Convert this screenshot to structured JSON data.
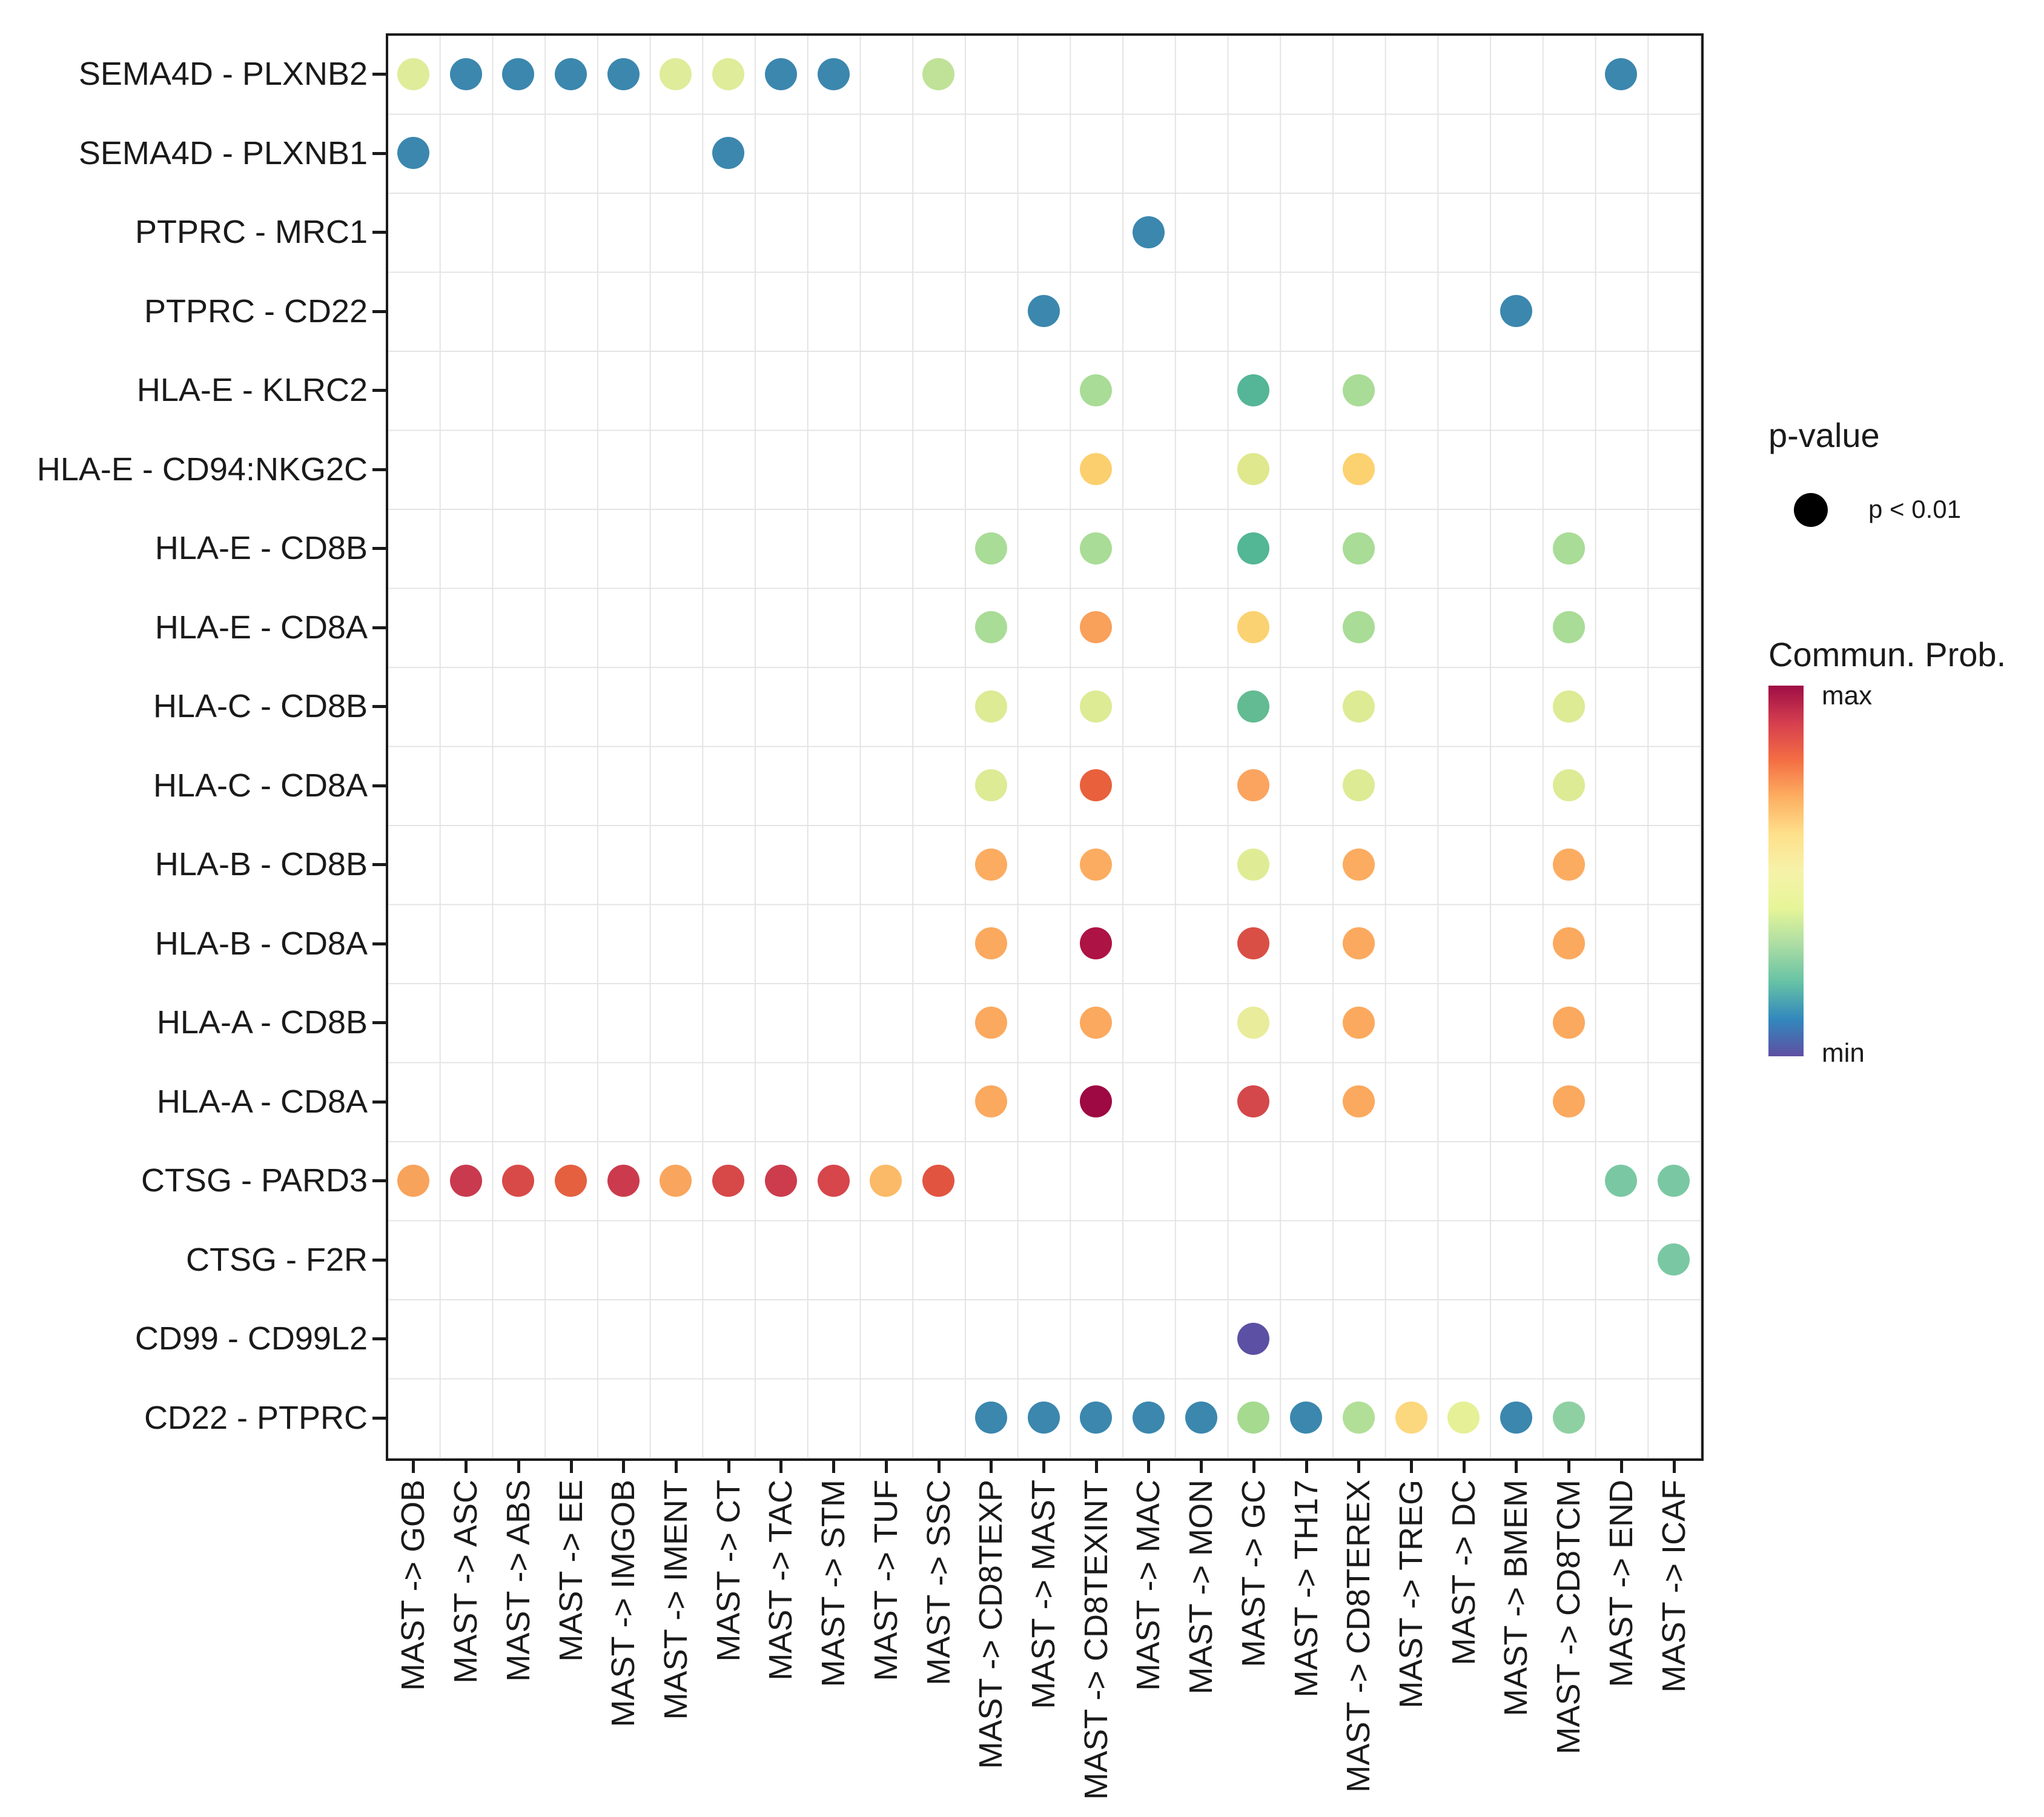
{
  "legend": {
    "p_value_title": "p-value",
    "p_value_item": "p < 0.01",
    "colorbar_title": "Commun. Prob.",
    "colorbar_max_label": "max",
    "colorbar_min_label": "min"
  },
  "chart_data": {
    "type": "scatter",
    "subtype": "dot-matrix (ligand-receptor communication bubble plot)",
    "title": "",
    "xlabel": "",
    "ylabel": "",
    "grid": "on",
    "legend_position": "right",
    "x_categories": [
      "MAST -> GOB",
      "MAST -> ASC",
      "MAST -> ABS",
      "MAST -> EE",
      "MAST -> IMGOB",
      "MAST -> IMENT",
      "MAST -> CT",
      "MAST -> TAC",
      "MAST -> STM",
      "MAST -> TUF",
      "MAST -> SSC",
      "MAST -> CD8TEXP",
      "MAST -> MAST",
      "MAST -> CD8TEXINT",
      "MAST -> MAC",
      "MAST -> MON",
      "MAST -> GC",
      "MAST -> TH17",
      "MAST -> CD8TEREX",
      "MAST -> TREG",
      "MAST -> DC",
      "MAST -> BMEM",
      "MAST -> CD8TCM",
      "MAST -> END",
      "MAST -> ICAF"
    ],
    "y_categories": [
      "SEMA4D - PLXNB2",
      "SEMA4D - PLXNB1",
      "PTPRC - MRC1",
      "PTPRC - CD22",
      "HLA-E - KLRC2",
      "HLA-E - CD94:NKG2C",
      "HLA-E - CD8B",
      "HLA-E - CD8A",
      "HLA-C - CD8B",
      "HLA-C - CD8A",
      "HLA-B - CD8B",
      "HLA-B - CD8A",
      "HLA-A - CD8B",
      "HLA-A - CD8A",
      "CTSG - PARD3",
      "CTSG - F2R",
      "CD99 - CD99L2",
      "CD22 - PTPRC"
    ],
    "p_value_encoding": "all shown dots: p < 0.01",
    "color_encoding": "Commun. Prob., min (purple/blue) to max (dark red), Spectral reversed",
    "colorbar_stops": [
      "#9E0E45",
      "#D53E4F",
      "#F46D43",
      "#FDAE61",
      "#FEE08B",
      "#F6F2A9",
      "#E6F598",
      "#ABDDA4",
      "#66C2A5",
      "#3288BD",
      "#5E4FA2"
    ],
    "points": [
      [
        0,
        0,
        "#DFEC9A",
        0.47
      ],
      [
        0,
        1,
        "#3B87AE",
        0.12
      ],
      [
        0,
        2,
        "#3B87AE",
        0.12
      ],
      [
        0,
        3,
        "#3B87AE",
        0.12
      ],
      [
        0,
        4,
        "#3B87AE",
        0.12
      ],
      [
        0,
        5,
        "#DFEC9A",
        0.47
      ],
      [
        0,
        6,
        "#DFEC9A",
        0.47
      ],
      [
        0,
        7,
        "#3B87AE",
        0.12
      ],
      [
        0,
        8,
        "#3B87AE",
        0.12
      ],
      [
        0,
        10,
        "#BFE298",
        0.42
      ],
      [
        0,
        23,
        "#3B87AE",
        0.12
      ],
      [
        1,
        0,
        "#3B87AE",
        0.12
      ],
      [
        1,
        6,
        "#3B87AE",
        0.12
      ],
      [
        2,
        14,
        "#3B87AE",
        0.12
      ],
      [
        3,
        12,
        "#3B87AE",
        0.12
      ],
      [
        3,
        21,
        "#3B87AE",
        0.12
      ],
      [
        4,
        13,
        "#A9DC96",
        0.38
      ],
      [
        4,
        16,
        "#55B597",
        0.27
      ],
      [
        4,
        18,
        "#A9DC96",
        0.38
      ],
      [
        5,
        13,
        "#FCCF6E",
        0.58
      ],
      [
        5,
        16,
        "#E0E88D",
        0.47
      ],
      [
        5,
        18,
        "#FCD170",
        0.58
      ],
      [
        6,
        11,
        "#A9DC96",
        0.38
      ],
      [
        6,
        13,
        "#A9DC96",
        0.38
      ],
      [
        6,
        16,
        "#53B695",
        0.27
      ],
      [
        6,
        18,
        "#A9DC96",
        0.38
      ],
      [
        6,
        22,
        "#A9DC96",
        0.38
      ],
      [
        7,
        11,
        "#A9DC96",
        0.38
      ],
      [
        7,
        13,
        "#F9A05A",
        0.68
      ],
      [
        7,
        16,
        "#FBD271",
        0.58
      ],
      [
        7,
        18,
        "#A9DC96",
        0.38
      ],
      [
        7,
        22,
        "#A9DC96",
        0.38
      ],
      [
        8,
        11,
        "#DCEB94",
        0.47
      ],
      [
        8,
        13,
        "#DCEB94",
        0.47
      ],
      [
        8,
        16,
        "#62BB92",
        0.28
      ],
      [
        8,
        18,
        "#DCEB94",
        0.47
      ],
      [
        8,
        22,
        "#DCEB94",
        0.47
      ],
      [
        9,
        11,
        "#DCEB94",
        0.47
      ],
      [
        9,
        13,
        "#E8603C",
        0.78
      ],
      [
        9,
        16,
        "#FAA45F",
        0.68
      ],
      [
        9,
        18,
        "#DDEB95",
        0.47
      ],
      [
        9,
        22,
        "#DDEB95",
        0.47
      ],
      [
        10,
        11,
        "#FBAC60",
        0.68
      ],
      [
        10,
        13,
        "#FBAC60",
        0.68
      ],
      [
        10,
        16,
        "#E0EC95",
        0.47
      ],
      [
        10,
        18,
        "#FBAC60",
        0.68
      ],
      [
        10,
        22,
        "#FBAC60",
        0.68
      ],
      [
        11,
        11,
        "#FBA95E",
        0.68
      ],
      [
        11,
        13,
        "#AD1345",
        0.96
      ],
      [
        11,
        16,
        "#D94F45",
        0.85
      ],
      [
        11,
        18,
        "#FBA95E",
        0.68
      ],
      [
        11,
        22,
        "#FBA95E",
        0.68
      ],
      [
        12,
        11,
        "#FBA95E",
        0.68
      ],
      [
        12,
        13,
        "#FBA95E",
        0.68
      ],
      [
        12,
        16,
        "#E8EC9B",
        0.47
      ],
      [
        12,
        18,
        "#FBA95E",
        0.68
      ],
      [
        12,
        22,
        "#FBA95E",
        0.68
      ],
      [
        13,
        11,
        "#FBA95E",
        0.68
      ],
      [
        13,
        13,
        "#9E0843",
        1.0
      ],
      [
        13,
        16,
        "#D4484B",
        0.85
      ],
      [
        13,
        18,
        "#FBA95E",
        0.68
      ],
      [
        13,
        22,
        "#FBA95E",
        0.68
      ],
      [
        14,
        0,
        "#F8A35C",
        0.68
      ],
      [
        14,
        1,
        "#C93A4E",
        0.89
      ],
      [
        14,
        2,
        "#D84A48",
        0.85
      ],
      [
        14,
        3,
        "#E4603F",
        0.78
      ],
      [
        14,
        4,
        "#CB3B4D",
        0.89
      ],
      [
        14,
        5,
        "#F9A55E",
        0.68
      ],
      [
        14,
        6,
        "#D74849",
        0.85
      ],
      [
        14,
        7,
        "#CC3C4D",
        0.89
      ],
      [
        14,
        8,
        "#D6464B",
        0.85
      ],
      [
        14,
        9,
        "#FBBA67",
        0.63
      ],
      [
        14,
        10,
        "#E15540",
        0.8
      ],
      [
        14,
        23,
        "#7AC8A3",
        0.32
      ],
      [
        14,
        24,
        "#7AC8A3",
        0.32
      ],
      [
        15,
        24,
        "#7AC8A3",
        0.32
      ],
      [
        16,
        16,
        "#5B50A3",
        0.02
      ],
      [
        17,
        11,
        "#3B87AE",
        0.12
      ],
      [
        17,
        12,
        "#3B87AE",
        0.12
      ],
      [
        17,
        13,
        "#3B87AE",
        0.12
      ],
      [
        17,
        14,
        "#3B87AE",
        0.12
      ],
      [
        17,
        15,
        "#3B87AE",
        0.12
      ],
      [
        17,
        16,
        "#A5DA8F",
        0.38
      ],
      [
        17,
        17,
        "#3B87AE",
        0.12
      ],
      [
        17,
        18,
        "#B2DF97",
        0.4
      ],
      [
        17,
        19,
        "#FBD77E",
        0.58
      ],
      [
        17,
        20,
        "#E6F097",
        0.47
      ],
      [
        17,
        21,
        "#3B87AE",
        0.12
      ],
      [
        17,
        22,
        "#8FD0A3",
        0.33
      ]
    ]
  }
}
